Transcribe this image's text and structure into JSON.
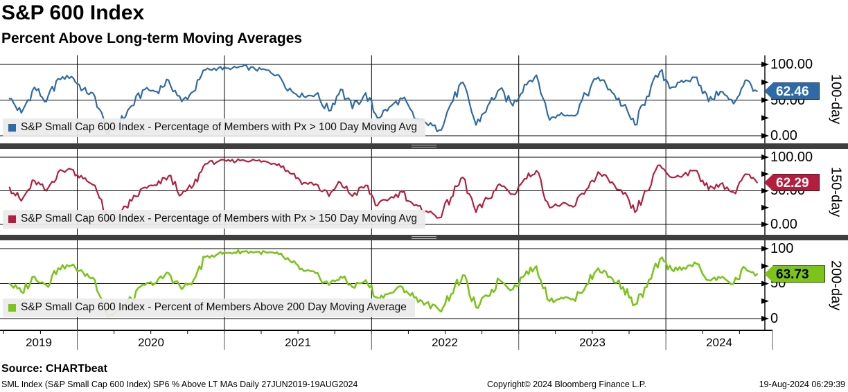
{
  "header": {
    "title": "S&P 600 Index",
    "subtitle": "Percent Above Long-term Moving Averages"
  },
  "footer": {
    "source": "Source: CHARTbeat",
    "details": "SML Index (S&P Small Cap 600 Index) SP6 % Above LT MAs  Daily 27JUN2019-19AUG2024",
    "copyright": "Copyright© 2024 Bloomberg Finance L.P.",
    "timestamp": "19-Aug-2024 06:29:39"
  },
  "chart_data": {
    "type": "line",
    "title": "S&P 600 Index - Percent Above Long-term Moving Averages",
    "x_axis": {
      "tick_labels": [
        "2019",
        "2020",
        "2021",
        "2022",
        "2023",
        "2024"
      ],
      "range_start": "27JUN2019",
      "range_end": "19AUG2024",
      "grid": "vertical lines at year boundaries"
    },
    "x": [
      2019.54,
      2019.62,
      2019.71,
      2019.79,
      2019.87,
      2019.96,
      2020.04,
      2020.12,
      2020.21,
      2020.29,
      2020.37,
      2020.46,
      2020.54,
      2020.62,
      2020.71,
      2020.79,
      2020.87,
      2020.96,
      2021.04,
      2021.12,
      2021.21,
      2021.29,
      2021.37,
      2021.46,
      2021.54,
      2021.62,
      2021.71,
      2021.79,
      2021.87,
      2021.96,
      2022.04,
      2022.12,
      2022.21,
      2022.29,
      2022.37,
      2022.46,
      2022.54,
      2022.62,
      2022.71,
      2022.79,
      2022.87,
      2022.96,
      2023.04,
      2023.12,
      2023.21,
      2023.29,
      2023.37,
      2023.46,
      2023.54,
      2023.62,
      2023.71,
      2023.79,
      2023.87,
      2023.96,
      2024.04,
      2024.12,
      2024.21,
      2024.29,
      2024.37,
      2024.46,
      2024.54,
      2024.62
    ],
    "panels": [
      {
        "id": "100-day",
        "axis_title": "100-day",
        "legend": "S&P Small Cap 600 Index - Percentage of Members with Px > 100 Day Moving Avg",
        "color": "#2E6BA6",
        "tag_text_color": "#ffffff",
        "last_label": "62.46",
        "last_value": 62.46,
        "ylim": [
          0,
          100
        ],
        "y_ticks": [
          {
            "v": 100,
            "label": "100.00"
          },
          {
            "v": 50,
            "label": "50.00"
          },
          {
            "v": 0,
            "label": "0.00"
          }
        ],
        "minor_ticks": [
          25,
          75
        ],
        "values": [
          52,
          32,
          68,
          48,
          80,
          83,
          65,
          55,
          2,
          18,
          42,
          65,
          62,
          78,
          48,
          62,
          92,
          95,
          93,
          97,
          93,
          92,
          85,
          62,
          55,
          58,
          35,
          65,
          38,
          60,
          25,
          40,
          52,
          25,
          18,
          8,
          45,
          75,
          15,
          42,
          65,
          42,
          72,
          85,
          22,
          32,
          28,
          58,
          82,
          65,
          42,
          15,
          55,
          90,
          68,
          75,
          82,
          48,
          62,
          45,
          78,
          62.46
        ]
      },
      {
        "id": "150-day",
        "axis_title": "150-day",
        "legend": "S&P Small Cap 600 Index - Percentage of Members with Px > 150 Day Moving Avg",
        "color": "#B41E3C",
        "tag_text_color": "#ffffff",
        "last_label": "62.29",
        "last_value": 62.29,
        "ylim": [
          0,
          100
        ],
        "y_ticks": [
          {
            "v": 100,
            "label": "100.00"
          },
          {
            "v": 50,
            "label": "50.00"
          },
          {
            "v": 0,
            "label": "0.00"
          }
        ],
        "minor_ticks": [
          25,
          75
        ],
        "values": [
          55,
          35,
          65,
          50,
          78,
          82,
          68,
          58,
          3,
          15,
          35,
          55,
          58,
          72,
          45,
          58,
          90,
          94,
          94,
          96,
          95,
          93,
          90,
          75,
          62,
          60,
          42,
          62,
          42,
          58,
          28,
          38,
          48,
          28,
          20,
          10,
          40,
          70,
          18,
          38,
          60,
          45,
          68,
          80,
          25,
          30,
          26,
          52,
          78,
          62,
          45,
          18,
          50,
          88,
          70,
          74,
          80,
          52,
          60,
          48,
          75,
          62.29
        ]
      },
      {
        "id": "200-day",
        "axis_title": "200-day",
        "legend": "S&P Small Cap 600 Index - Percent of Members Above 200 Day Moving Average",
        "color": "#7CC41A",
        "tag_text_color": "#000000",
        "last_label": "63.73",
        "last_value": 63.73,
        "ylim": [
          0,
          100
        ],
        "y_ticks": [
          {
            "v": 100,
            "label": "100"
          },
          {
            "v": 50,
            "label": "50"
          },
          {
            "v": 0,
            "label": "0"
          }
        ],
        "minor_ticks": [
          25,
          75
        ],
        "values": [
          50,
          38,
          60,
          48,
          72,
          76,
          66,
          55,
          3,
          12,
          28,
          48,
          52,
          65,
          42,
          55,
          88,
          93,
          94,
          96,
          95,
          94,
          92,
          80,
          68,
          65,
          48,
          60,
          45,
          55,
          30,
          36,
          45,
          30,
          22,
          12,
          35,
          62,
          16,
          32,
          55,
          42,
          62,
          75,
          25,
          30,
          28,
          48,
          72,
          60,
          45,
          20,
          45,
          85,
          70,
          73,
          78,
          55,
          58,
          50,
          72,
          63.73
        ]
      }
    ]
  },
  "colors": {
    "grid": "#000000",
    "divider": "#3e3e3e",
    "legend_bg": "#ebebeb"
  }
}
